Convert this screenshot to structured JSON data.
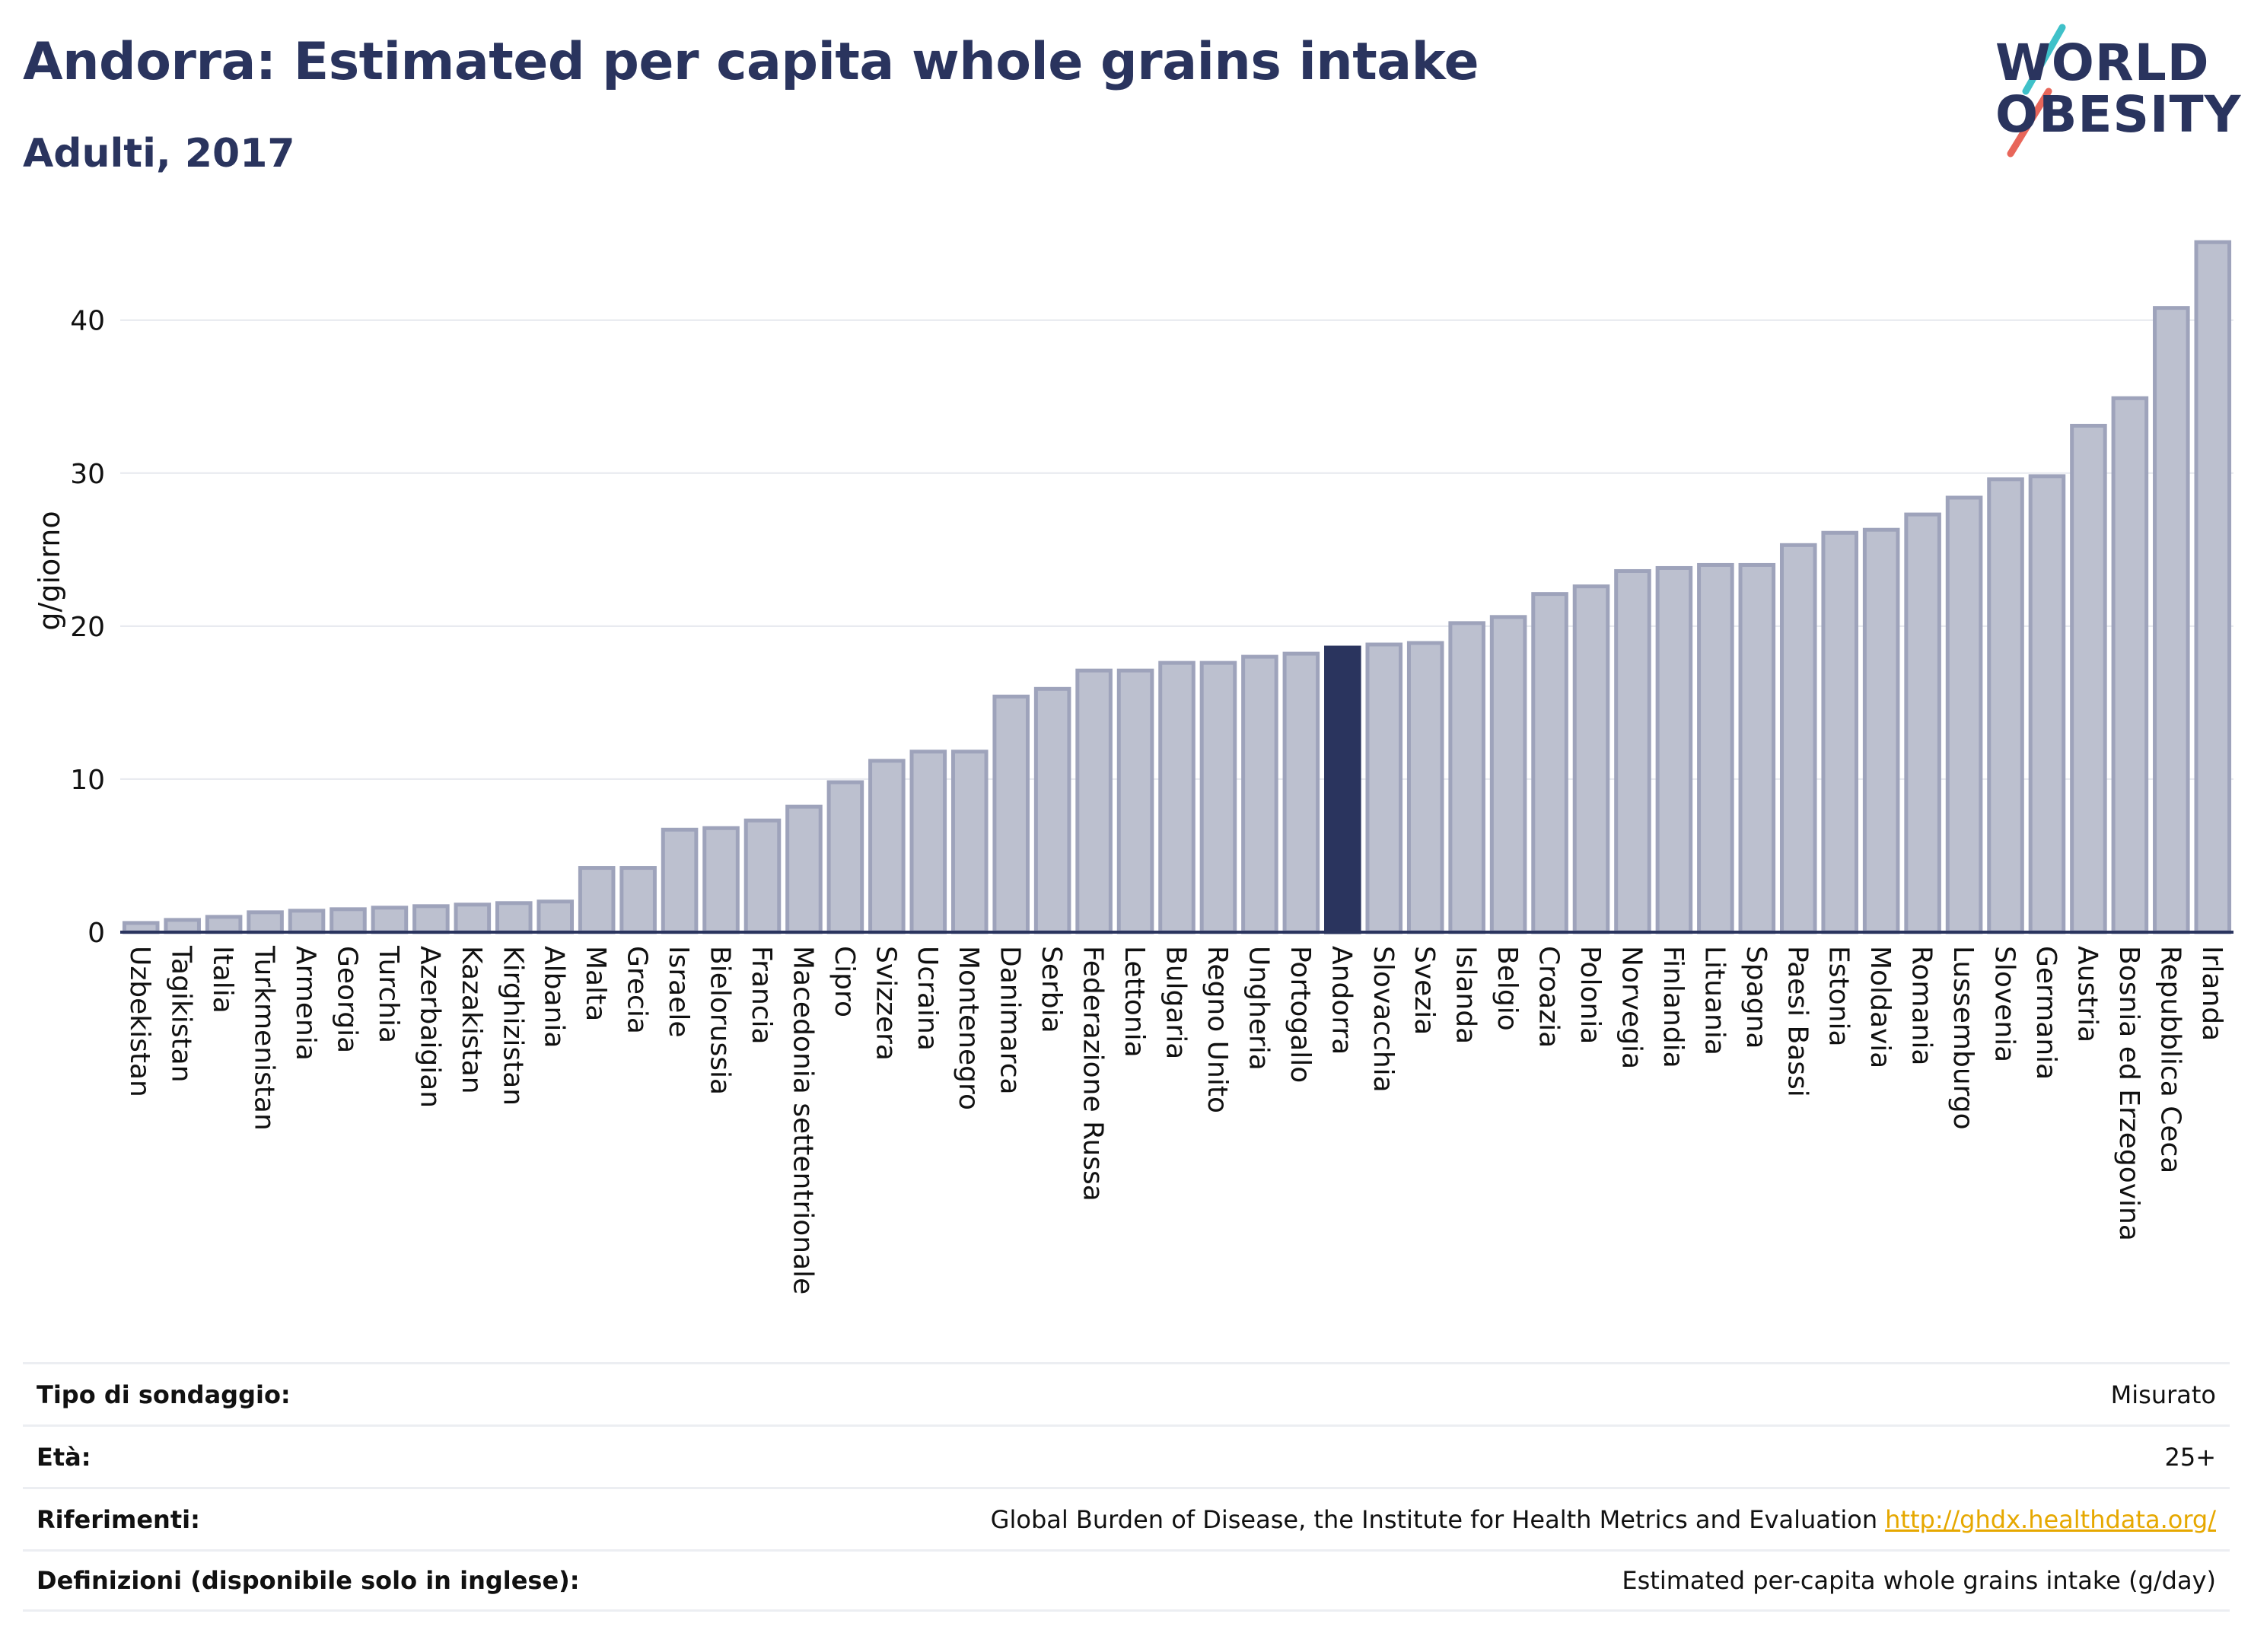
{
  "header": {
    "title": "Andorra: Estimated per capita whole grains intake",
    "subtitle": "Adulti, 2017"
  },
  "logo": {
    "line1": "WORLD",
    "line2": "OBESITY",
    "colors": {
      "text": "#2a345e",
      "accent_teal": "#3fc1c9",
      "accent_red": "#e8665a"
    }
  },
  "chart_data": {
    "type": "bar",
    "ylabel": "g/giorno",
    "xlabel": "",
    "ylim": [
      0,
      47
    ],
    "yticks": [
      0,
      10,
      20,
      30,
      40
    ],
    "grid": true,
    "highlight": "Andorra",
    "colors": {
      "bar": "#bcc0cf",
      "bar_edge": "#9ea3bb",
      "highlight": "#2a345e"
    },
    "categories": [
      "Uzbekistan",
      "Tagikistan",
      "Italia",
      "Turkmenistan",
      "Armenia",
      "Georgia",
      "Turchia",
      "Azerbaigian",
      "Kazakistan",
      "Kirghizistan",
      "Albania",
      "Malta",
      "Grecia",
      "Israele",
      "Bielorussia",
      "Francia",
      "Macedonia settentrionale",
      "Cipro",
      "Svizzera",
      "Ucraina",
      "Montenegro",
      "Danimarca",
      "Serbia",
      "Federazione Russa",
      "Lettonia",
      "Bulgaria",
      "Regno Unito",
      "Ungheria",
      "Portogallo",
      "Andorra",
      "Slovacchia",
      "Svezia",
      "Islanda",
      "Belgio",
      "Croazia",
      "Polonia",
      "Norvegia",
      "Finlandia",
      "Lituania",
      "Spagna",
      "Paesi Bassi",
      "Estonia",
      "Moldavia",
      "Romania",
      "Lussemburgo",
      "Slovenia",
      "Germania",
      "Austria",
      "Bosnia ed Erzegovina",
      "Repubblica Ceca",
      "Irlanda"
    ],
    "values": [
      0.6,
      0.8,
      1.0,
      1.3,
      1.4,
      1.5,
      1.6,
      1.7,
      1.8,
      1.9,
      2.0,
      4.2,
      4.2,
      6.7,
      6.8,
      7.3,
      8.2,
      9.8,
      11.2,
      11.8,
      11.8,
      15.4,
      15.9,
      17.1,
      17.1,
      17.6,
      17.6,
      18.0,
      18.2,
      18.6,
      18.8,
      18.9,
      20.2,
      20.6,
      22.1,
      22.6,
      23.6,
      23.8,
      24.0,
      24.0,
      25.3,
      26.1,
      26.3,
      27.3,
      28.4,
      29.6,
      29.8,
      33.1,
      34.9,
      40.8,
      45.1
    ]
  },
  "info": [
    {
      "label": "Tipo di sondaggio:",
      "value": "Misurato",
      "link": ""
    },
    {
      "label": "Età:",
      "value": "25+",
      "link": ""
    },
    {
      "label": "Riferimenti:",
      "value": "Global Burden of Disease, the Institute for Health Metrics and Evaluation",
      "link": "http://ghdx.healthdata.org/"
    },
    {
      "label": "Definizioni (disponibile solo in inglese):",
      "value": "Estimated per-capita whole grains intake (g/day)",
      "link": ""
    }
  ]
}
